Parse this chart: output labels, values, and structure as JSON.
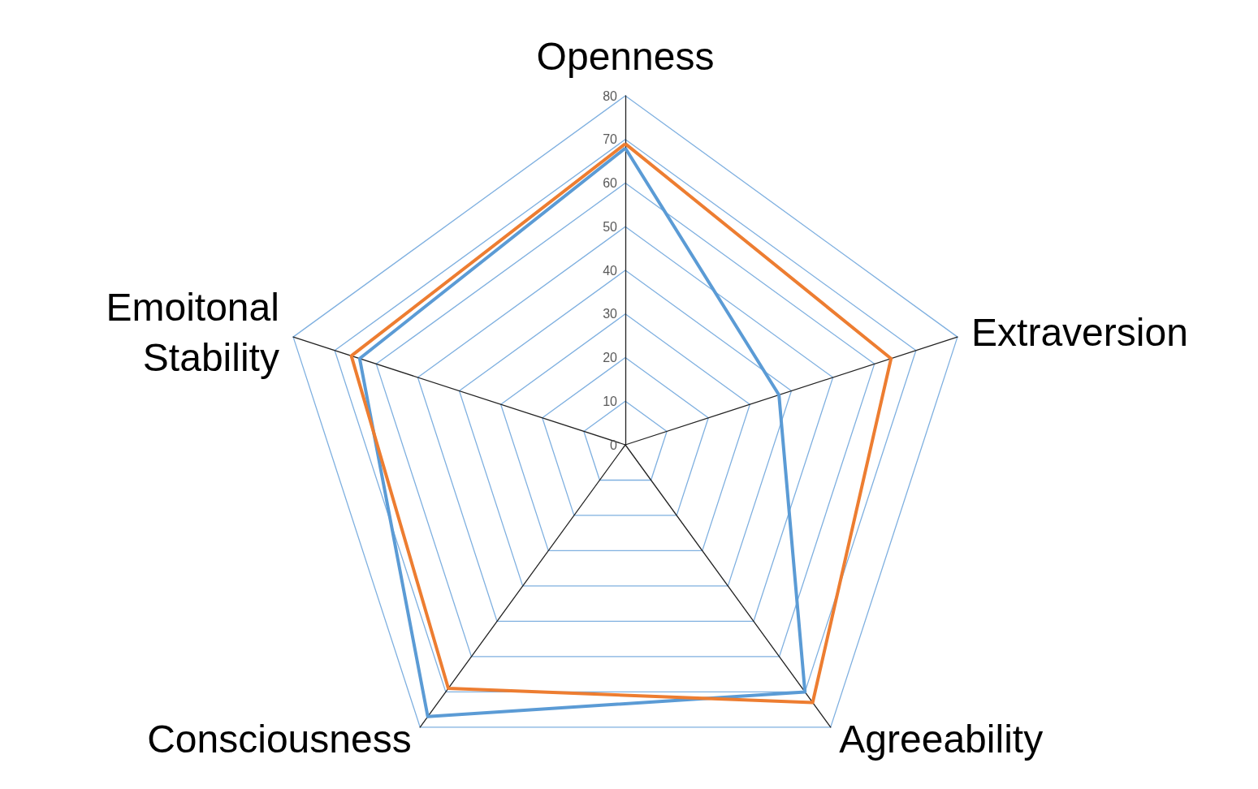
{
  "chart_data": {
    "type": "radar",
    "categories": [
      "Openness",
      "Extraversion",
      "Agreeability",
      "Consciousness",
      "Emoitonal Stability"
    ],
    "series": [
      {
        "color": "#5b9bd5",
        "values": [
          68,
          37,
          70,
          77,
          64
        ]
      },
      {
        "color": "#ed7d31",
        "values": [
          69,
          64,
          73,
          69,
          66
        ]
      }
    ],
    "ylim": [
      0,
      80
    ],
    "yticks": [
      0,
      10,
      20,
      30,
      40,
      50,
      60,
      70,
      80
    ],
    "grid": true,
    "marker": "none"
  }
}
